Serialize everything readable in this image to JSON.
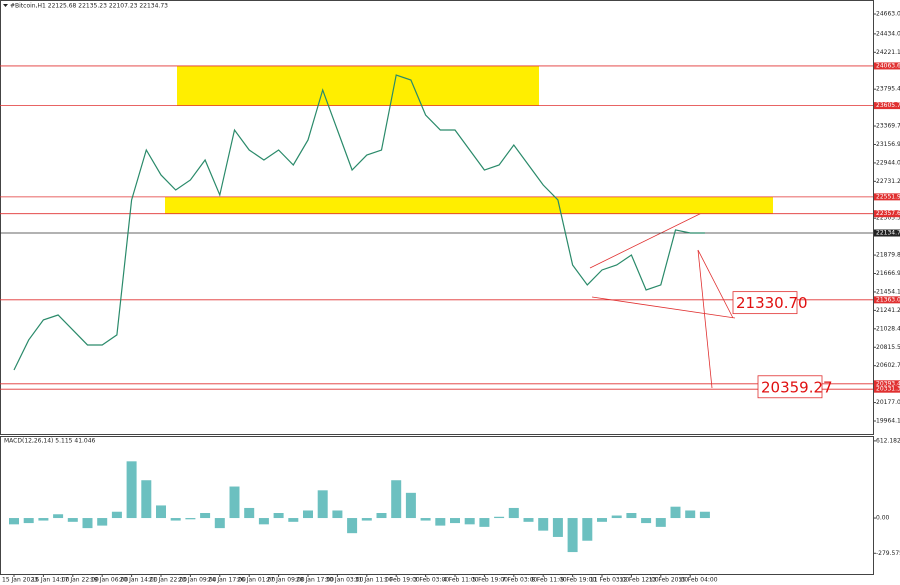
{
  "chart_data": [
    {
      "type": "line",
      "title": "#Bitcoin,H1  22125.68 22135.23 22107.23 22134.73",
      "ylim": [
        19814,
        24825
      ],
      "yticks": [
        {
          "value": 19964.15,
          "label": "19964.15"
        },
        {
          "value": 20177.0,
          "label": "20177.00"
        },
        {
          "value": 20389.85,
          "label": "20389.85"
        },
        {
          "value": 20602.7,
          "label": "20602.70"
        },
        {
          "value": 20815.55,
          "label": "20815.55"
        },
        {
          "value": 21028.4,
          "label": "21028.40"
        },
        {
          "value": 21241.25,
          "label": "21241.25"
        },
        {
          "value": 21454.1,
          "label": "21454.10"
        },
        {
          "value": 21666.95,
          "label": "21666.95"
        },
        {
          "value": 21879.8,
          "label": "21879.80"
        },
        {
          "value": 22305.5,
          "label": "22305.50"
        },
        {
          "value": 22731.2,
          "label": "22731.20"
        },
        {
          "value": 22944.05,
          "label": "22944.05"
        },
        {
          "value": 23156.9,
          "label": "23156.90"
        },
        {
          "value": 23369.75,
          "label": "23369.75"
        },
        {
          "value": 23795.45,
          "label": "23795.45"
        },
        {
          "value": 24221.15,
          "label": "24221.15"
        },
        {
          "value": 24434.0,
          "label": "24434.00"
        },
        {
          "value": 24663.0,
          "label": "24663.00"
        }
      ],
      "series": [
        {
          "name": "#Bitcoin,H1",
          "color": "#2a8a6a",
          "values": [
            20553,
            20900,
            21131,
            21188,
            21015,
            20842,
            20842,
            20958,
            22516,
            23093,
            22805,
            22631,
            22747,
            22978,
            22574,
            23324,
            23093,
            22978,
            23093,
            22920,
            23209,
            23786,
            23324,
            22862,
            23035,
            23093,
            23959,
            23901,
            23497,
            23324,
            23324,
            23093,
            22862,
            22920,
            23151,
            22920,
            22689,
            22516,
            21766,
            21535,
            21708,
            21766,
            21881,
            21477,
            21535,
            22170,
            22135,
            22135
          ]
        }
      ],
      "levels": [
        24063.63,
        23605.71,
        22551.96,
        22357.61,
        21363.06,
        20393.48,
        20331.37
      ],
      "level_color": "#e03030",
      "current": 22134.73,
      "zones": [
        {
          "from": 23605.71,
          "to": 24063.63,
          "color": "#ffee00"
        },
        {
          "from": 22357.61,
          "to": 22551.96,
          "color": "#ffee00"
        }
      ],
      "annotations": [
        {
          "value": 21330.7,
          "label": "21330.70"
        },
        {
          "value": 20359.27,
          "label": "20359.27"
        }
      ]
    },
    {
      "type": "bar",
      "title": "MACD(12,26,14) 5.115 41.046",
      "color": "#6cc0c0",
      "ylim": [
        -444,
        643
      ],
      "yticks": [
        {
          "value": 612.182,
          "label": "612.182"
        },
        {
          "value": 0,
          "label": "0.00"
        },
        {
          "value": -279.575,
          "label": "-279.575"
        }
      ],
      "categories": [
        "15 Jan 2023",
        null,
        "16 Jan 14:00",
        null,
        "17 Jan 22:00",
        null,
        "19 Jan 06:00",
        null,
        "20 Jan 14:00",
        null,
        "21 Jan 22:00",
        null,
        "23 Jan 09:00",
        null,
        "24 Jan 17:00",
        null,
        "26 Jan 01:00",
        null,
        "27 Jan 09:00",
        null,
        "28 Jan 17:00",
        null,
        "30 Jan 03:00",
        null,
        "31 Jan 11:00",
        null,
        "1 Feb 19:00",
        null,
        "3 Feb 03:00",
        null,
        "4 Feb 11:00",
        null,
        "5 Feb 19:00",
        null,
        "7 Feb 03:00",
        null,
        "8 Feb 11:00",
        null,
        "9 Feb 19:00",
        null,
        "11 Feb 03:00",
        null,
        "12 Feb 12:00",
        null,
        "13 Feb 20:00",
        null,
        "15 Feb 04:00",
        null
      ],
      "values": [
        -50,
        -40,
        -20,
        30,
        -30,
        -80,
        -60,
        50,
        450,
        300,
        100,
        -20,
        -10,
        40,
        -80,
        250,
        80,
        -50,
        40,
        -30,
        60,
        220,
        60,
        -120,
        -20,
        40,
        300,
        200,
        -20,
        -60,
        -40,
        -50,
        -70,
        10,
        80,
        -30,
        -100,
        -150,
        -270,
        -180,
        -30,
        20,
        40,
        -40,
        -70,
        90,
        60,
        50
      ]
    }
  ]
}
